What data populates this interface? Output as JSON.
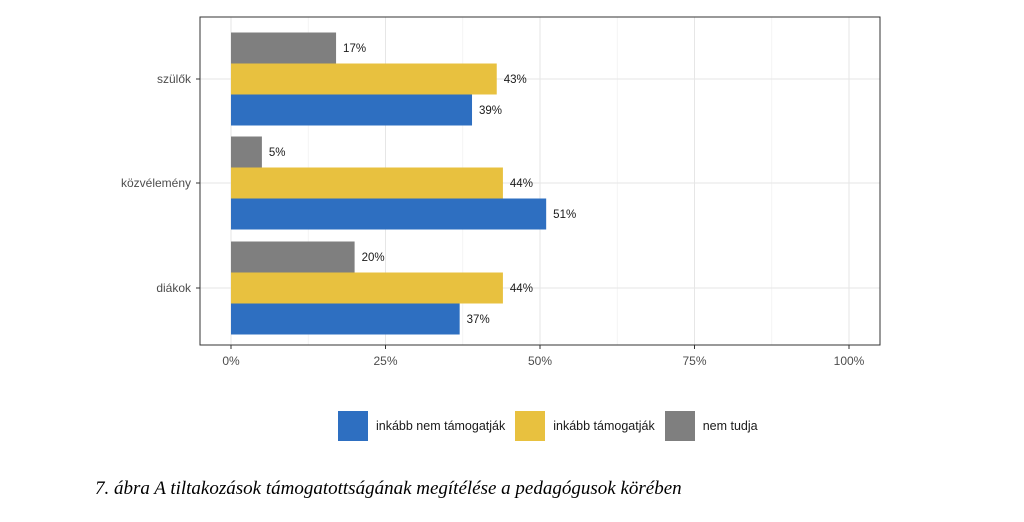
{
  "chart_data": {
    "type": "bar",
    "orientation": "horizontal",
    "categories": [
      "szülők",
      "közvélemény",
      "diákok"
    ],
    "series": [
      {
        "name": "nem tudja",
        "values": [
          17,
          5,
          20
        ],
        "color": "#7f7f7f"
      },
      {
        "name": "inkább támogatják",
        "values": [
          43,
          44,
          44
        ],
        "color": "#e8c13f"
      },
      {
        "name": "inkább nem támogatják",
        "values": [
          39,
          51,
          37
        ],
        "color": "#2e6fc1"
      }
    ],
    "value_labels": [
      [
        "17%",
        "5%",
        "20%"
      ],
      [
        "43%",
        "44%",
        "44%"
      ],
      [
        "39%",
        "51%",
        "37%"
      ]
    ],
    "xlim": [
      0,
      100
    ],
    "x_ticks": [
      0,
      25,
      50,
      75,
      100
    ],
    "x_tick_labels": [
      "0%",
      "25%",
      "50%",
      "75%",
      "100%"
    ],
    "grid": true,
    "legend_position": "bottom"
  },
  "legend": {
    "items": [
      {
        "label": "inkább nem támogatják",
        "color": "#2e6fc1"
      },
      {
        "label": "inkább támogatják",
        "color": "#e8c13f"
      },
      {
        "label": "nem tudja",
        "color": "#7f7f7f"
      }
    ]
  },
  "caption": "7. ábra A tiltakozások támogatottságának megítélése a pedagógusok körében"
}
